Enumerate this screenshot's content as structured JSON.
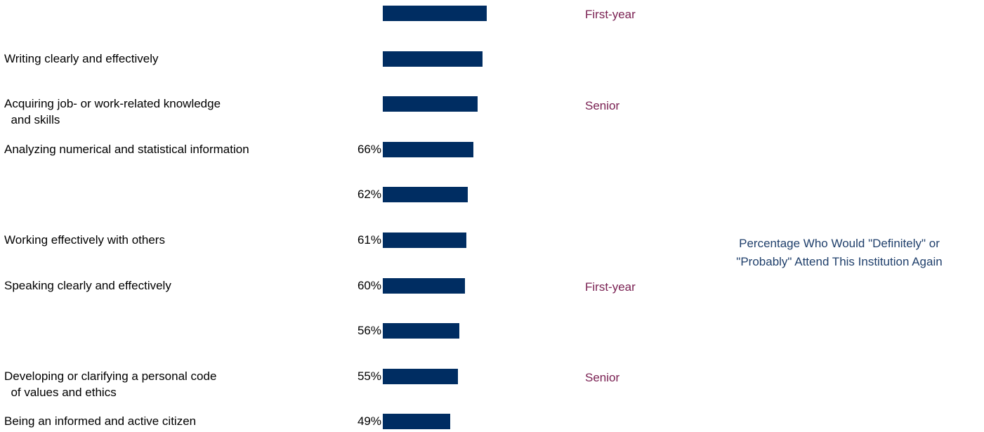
{
  "colors": {
    "bar": "#002d62",
    "legend_text": "#7a2052",
    "caption_text": "#1f3f6b",
    "label_text": "#000000"
  },
  "chart_data": {
    "type": "bar",
    "orientation": "horizontal",
    "categories": [
      "",
      "Writing clearly and effectively",
      "Acquiring job- or work-related knowledge\n  and skills",
      "Analyzing numerical and statistical information",
      "",
      "Working effectively with others",
      "Speaking clearly and effectively",
      "",
      "Developing or clarifying a personal code\n  of values and ethics",
      "Being an informed and active citizen"
    ],
    "values": [
      76,
      73,
      69,
      66,
      62,
      61,
      60,
      56,
      55,
      49
    ],
    "value_labels": [
      "",
      "",
      "",
      "66%",
      "62%",
      "61%",
      "60%",
      "56%",
      "55%",
      "49%"
    ],
    "xlim": [
      0,
      100
    ],
    "grid": false
  },
  "legend": {
    "items": [
      {
        "label": "First-year"
      },
      {
        "label": "Senior"
      },
      {
        "label": "First-year"
      },
      {
        "label": "Senior"
      }
    ]
  },
  "caption": {
    "line1": "Percentage Who Would \"Definitely\" or",
    "line2": "\"Probably\" Attend This Institution Again"
  }
}
